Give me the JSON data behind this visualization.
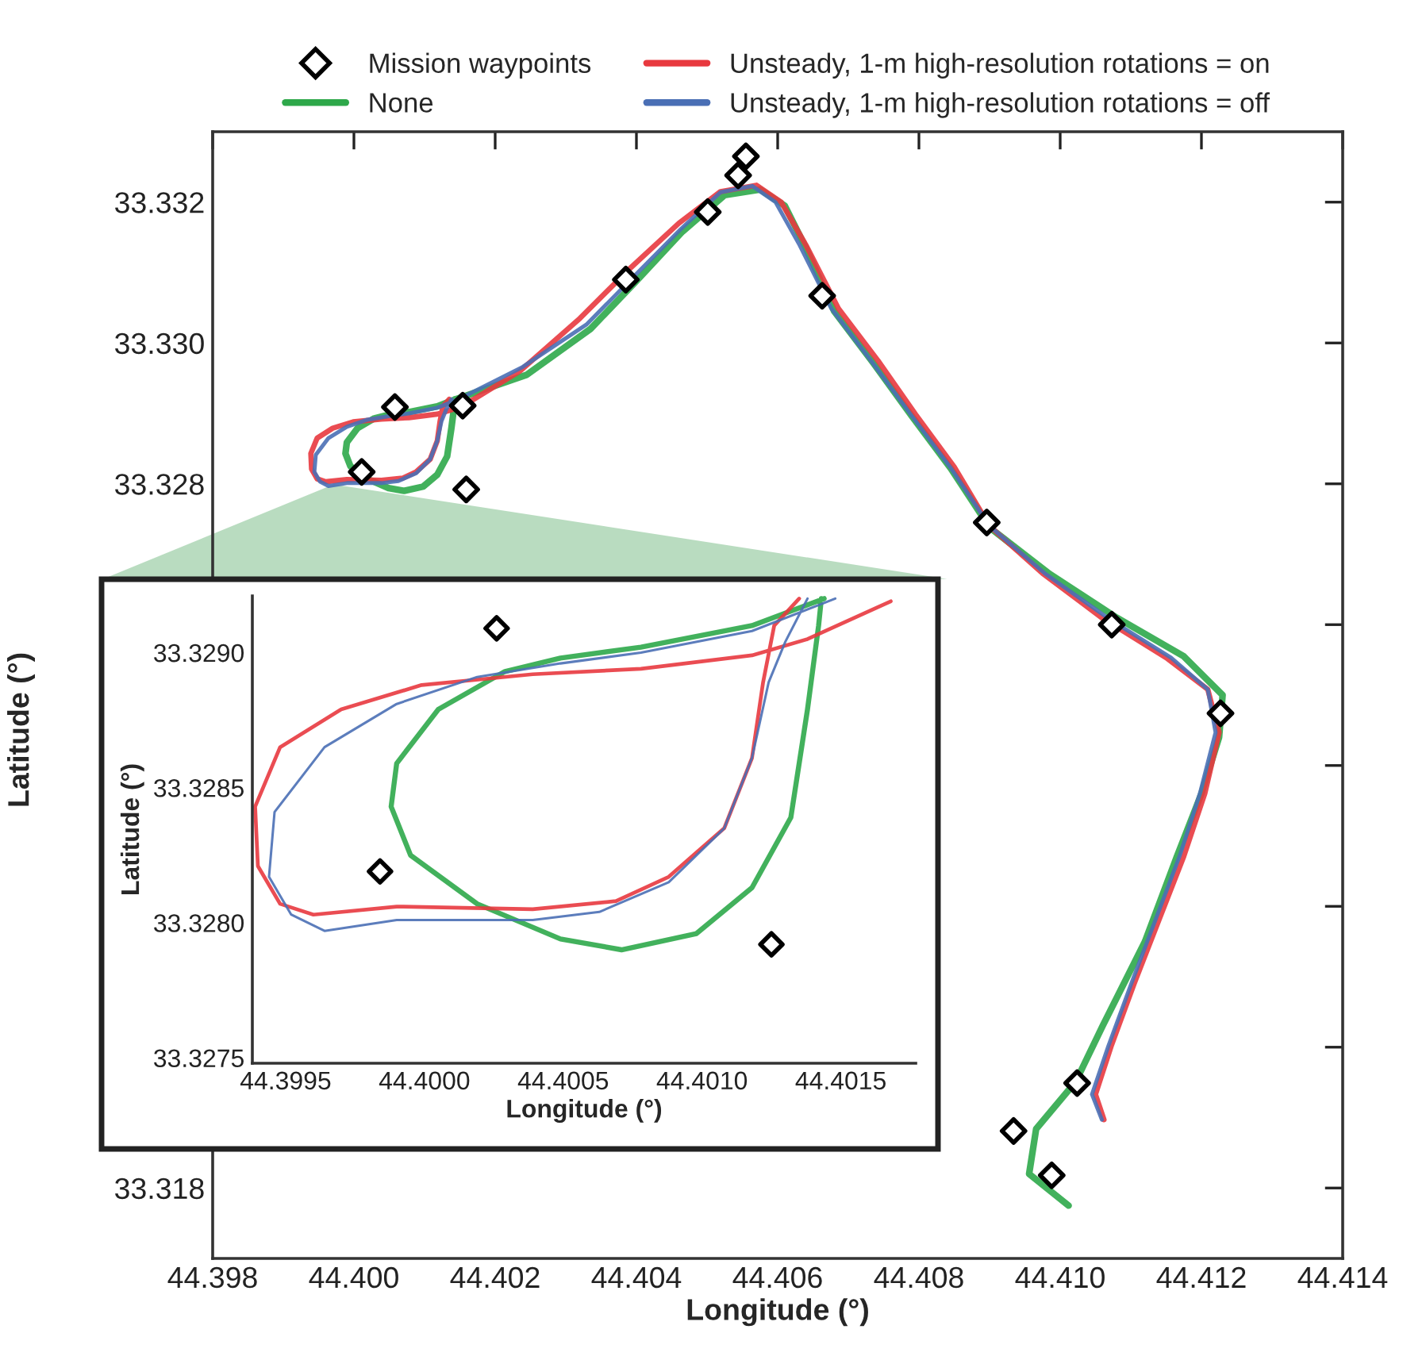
{
  "chart_data": [
    {
      "type": "line",
      "xlabel": "Longitude (°)",
      "ylabel": "Latitude (°)",
      "xlim": [
        44.398,
        44.414
      ],
      "ylim": [
        33.317,
        33.333
      ],
      "xticks": [
        {
          "value": 44.398,
          "label": "44.398"
        },
        {
          "value": 44.4,
          "label": "44.400"
        },
        44.402,
        44.404,
        44.406,
        44.408,
        {
          "value": 44.41,
          "label": "44.410"
        },
        44.412,
        44.414
      ],
      "yticks": [
        33.318,
        {
          "value": 33.32,
          "label": null
        },
        {
          "value": 33.322,
          "label": null
        },
        {
          "value": 33.324,
          "label": null
        },
        {
          "value": 33.326,
          "label": null
        },
        33.328,
        {
          "value": 33.33,
          "label": "33.330"
        },
        33.332
      ],
      "legend": "top",
      "grid": false,
      "line_style": "solid",
      "series": [
        {
          "name": "Mission waypoints",
          "type": "scatter",
          "marker": "diamond",
          "color": "#000000",
          "x": [
            44.40058,
            44.40154,
            44.40011,
            44.40159,
            44.40385,
            44.40501,
            44.40544,
            44.40555,
            44.40663,
            44.40896,
            44.41073,
            44.41227,
            44.41024,
            44.40934,
            44.40988
          ],
          "values": [
            33.32909,
            33.32911,
            33.32817,
            33.32792,
            33.3309,
            33.33186,
            33.33238,
            33.33265,
            33.33067,
            33.32745,
            33.326,
            33.32474,
            33.31949,
            33.31881,
            33.31818
          ]
        },
        {
          "name": "None",
          "type": "line",
          "color": "#2ea84a",
          "x": [
            44.40143,
            44.40142,
            44.40138,
            44.40132,
            44.40118,
            44.40098,
            44.40071,
            44.40049,
            44.40019,
            44.39995,
            44.39988,
            44.3999,
            44.40005,
            44.40029,
            44.40049,
            44.40078,
            44.40118,
            44.40144,
            44.40245,
            44.40335,
            44.404,
            44.40465,
            44.40525,
            44.40575,
            44.4061,
            44.4064,
            44.4068,
            44.40735,
            44.4079,
            44.40845,
            44.409,
            44.40985,
            44.4108,
            44.41175,
            44.4123,
            44.41225,
            44.412,
            44.41165,
            44.4112,
            44.4106,
            44.41022,
            44.40966,
            44.40956,
            44.41012
          ],
          "values": [
            33.3292,
            33.3291,
            33.32879,
            33.32839,
            33.32813,
            33.32796,
            33.3279,
            33.32794,
            33.32807,
            33.32825,
            33.32843,
            33.32859,
            33.32879,
            33.32893,
            33.32898,
            33.32902,
            33.3291,
            33.3292,
            33.32955,
            33.3302,
            33.33088,
            33.33158,
            33.3321,
            33.33218,
            33.33195,
            33.33135,
            33.33045,
            33.32972,
            33.32896,
            33.32822,
            33.32738,
            33.32672,
            33.3261,
            33.32555,
            33.325,
            33.3244,
            33.3236,
            33.3227,
            33.3215,
            33.3203,
            33.31951,
            33.31884,
            33.3182,
            33.31775
          ]
        },
        {
          "name": "Unsteady, 1-m high-resolution rotations = on",
          "type": "line",
          "color": "#e8393f",
          "x": [
            44.40135,
            44.40126,
            44.40122,
            44.40118,
            44.40108,
            44.40088,
            44.40069,
            44.40039,
            44.3999,
            44.3996,
            44.39948,
            44.3994,
            44.39939,
            44.39948,
            44.3997,
            44.39999,
            44.40039,
            44.40078,
            44.40118,
            44.40138,
            44.40168,
            44.40235,
            44.4032,
            44.4039,
            44.4046,
            44.40519,
            44.4057,
            44.40605,
            44.4064,
            44.40686,
            44.40742,
            44.40795,
            44.4085,
            44.409,
            44.40975,
            44.4106,
            44.4115,
            44.41209,
            44.41225,
            44.41205,
            44.41175,
            44.4114,
            44.41105,
            44.41072,
            44.4105,
            44.41062
          ],
          "values": [
            33.3292,
            33.3291,
            33.32889,
            33.32861,
            33.32835,
            33.32817,
            33.32808,
            33.32805,
            33.32806,
            33.32803,
            33.32807,
            33.32821,
            33.32843,
            33.32865,
            33.32879,
            33.32888,
            33.32892,
            33.32894,
            33.32899,
            33.32905,
            33.32919,
            33.3296,
            33.33035,
            33.33105,
            33.3317,
            33.33215,
            33.33224,
            33.332,
            33.33139,
            33.33049,
            33.32975,
            33.32899,
            33.32824,
            33.3274,
            33.32673,
            33.32609,
            33.32553,
            33.32508,
            33.32447,
            33.32361,
            33.32271,
            33.32181,
            33.32091,
            33.32001,
            33.31933,
            33.31897
          ]
        },
        {
          "name": "Unsteady, 1-m high-resolution rotations = off",
          "type": "line",
          "color": "#4a6fb5",
          "x": [
            44.40138,
            44.4013,
            44.40124,
            44.40118,
            44.40108,
            44.40088,
            44.40063,
            44.40039,
            44.3999,
            44.39964,
            44.39952,
            44.39944,
            44.39946,
            44.39964,
            44.3999,
            44.40019,
            44.40049,
            44.40078,
            44.40118,
            44.40148,
            44.40239,
            44.40329,
            44.40396,
            44.40463,
            44.40519,
            44.40564,
            44.40597,
            44.40631,
            44.40676,
            44.40732,
            44.40788,
            44.40844,
            44.409,
            44.40978,
            44.41068,
            44.41157,
            44.41209,
            44.4122,
            44.41198,
            44.41169,
            44.41135,
            44.41101,
            44.41068,
            44.41045,
            44.41059
          ],
          "values": [
            33.3292,
            33.32904,
            33.32889,
            33.32861,
            33.32835,
            33.32815,
            33.32804,
            33.32801,
            33.32801,
            33.32797,
            33.32803,
            33.32817,
            33.32841,
            33.32865,
            33.32881,
            33.32891,
            33.32896,
            33.329,
            33.32908,
            33.3292,
            33.32966,
            33.33026,
            33.33094,
            33.33162,
            33.33214,
            33.33223,
            33.332,
            33.33139,
            33.33049,
            33.32975,
            33.32899,
            33.32824,
            33.3274,
            33.32673,
            33.32609,
            33.32553,
            33.32508,
            33.32447,
            33.32361,
            33.32271,
            33.32181,
            33.32091,
            33.32001,
            33.31933,
            33.31897
          ]
        }
      ]
    },
    {
      "type": "line",
      "xlabel": "Longitude (°)",
      "ylabel": "Latitude (°)",
      "xlim": [
        44.39938,
        44.40177
      ],
      "ylim": [
        33.32748,
        33.32921
      ],
      "xticks": [
        44.3995,
        {
          "value": 44.4,
          "label": "44.4000"
        },
        44.4005,
        {
          "value": 44.401,
          "label": "44.4010"
        },
        44.4015
      ],
      "yticks": [
        33.3275,
        {
          "value": 33.328,
          "label": "33.3280"
        },
        33.3285,
        {
          "value": 33.329,
          "label": "33.3290"
        }
      ],
      "legend": false,
      "grid": false,
      "line_style": "solid",
      "series": [
        {
          "type": "scatter",
          "marker": "diamond",
          "color": "#000000",
          "x": [
            44.40026,
            44.39984,
            44.40125
          ],
          "values": [
            33.32909,
            33.32819,
            33.32792
          ]
        },
        {
          "type": "line",
          "color": "#2ea84a",
          "x": [
            44.40143,
            44.40142,
            44.40138,
            44.40132,
            44.40118,
            44.40098,
            44.40071,
            44.40049,
            44.40019,
            44.39995,
            44.39988,
            44.3999,
            44.40005,
            44.40029,
            44.40049,
            44.40078,
            44.40118,
            44.40144
          ],
          "values": [
            33.3292,
            33.3291,
            33.32879,
            33.32839,
            33.32813,
            33.32796,
            33.3279,
            33.32794,
            33.32807,
            33.32825,
            33.32843,
            33.32859,
            33.32879,
            33.32893,
            33.32898,
            33.32902,
            33.3291,
            33.3292
          ]
        },
        {
          "type": "line",
          "color": "#e8393f",
          "x": [
            44.40135,
            44.40126,
            44.40122,
            44.40118,
            44.40108,
            44.40088,
            44.40069,
            44.40039,
            44.3999,
            44.3996,
            44.39948,
            44.3994,
            44.39939,
            44.39948,
            44.3997,
            44.39999,
            44.40039,
            44.40078,
            44.40118,
            44.40138,
            44.40168
          ],
          "values": [
            33.3292,
            33.3291,
            33.32889,
            33.32861,
            33.32835,
            33.32817,
            33.32808,
            33.32805,
            33.32806,
            33.32803,
            33.32807,
            33.32821,
            33.32843,
            33.32865,
            33.32879,
            33.32888,
            33.32892,
            33.32894,
            33.32899,
            33.32905,
            33.32919
          ]
        },
        {
          "type": "line",
          "color": "#4a6fb5",
          "x": [
            44.40138,
            44.4013,
            44.40124,
            44.40118,
            44.40108,
            44.40088,
            44.40063,
            44.40039,
            44.3999,
            44.39964,
            44.39952,
            44.39944,
            44.39946,
            44.39964,
            44.3999,
            44.40019,
            44.40049,
            44.40078,
            44.40118,
            44.40148
          ],
          "values": [
            33.3292,
            33.32904,
            33.32889,
            33.32861,
            33.32835,
            33.32815,
            33.32804,
            33.32801,
            33.32801,
            33.32797,
            33.32803,
            33.32817,
            33.32841,
            33.32865,
            33.32881,
            33.32891,
            33.32896,
            33.329,
            33.32908,
            33.3292
          ]
        }
      ]
    }
  ]
}
